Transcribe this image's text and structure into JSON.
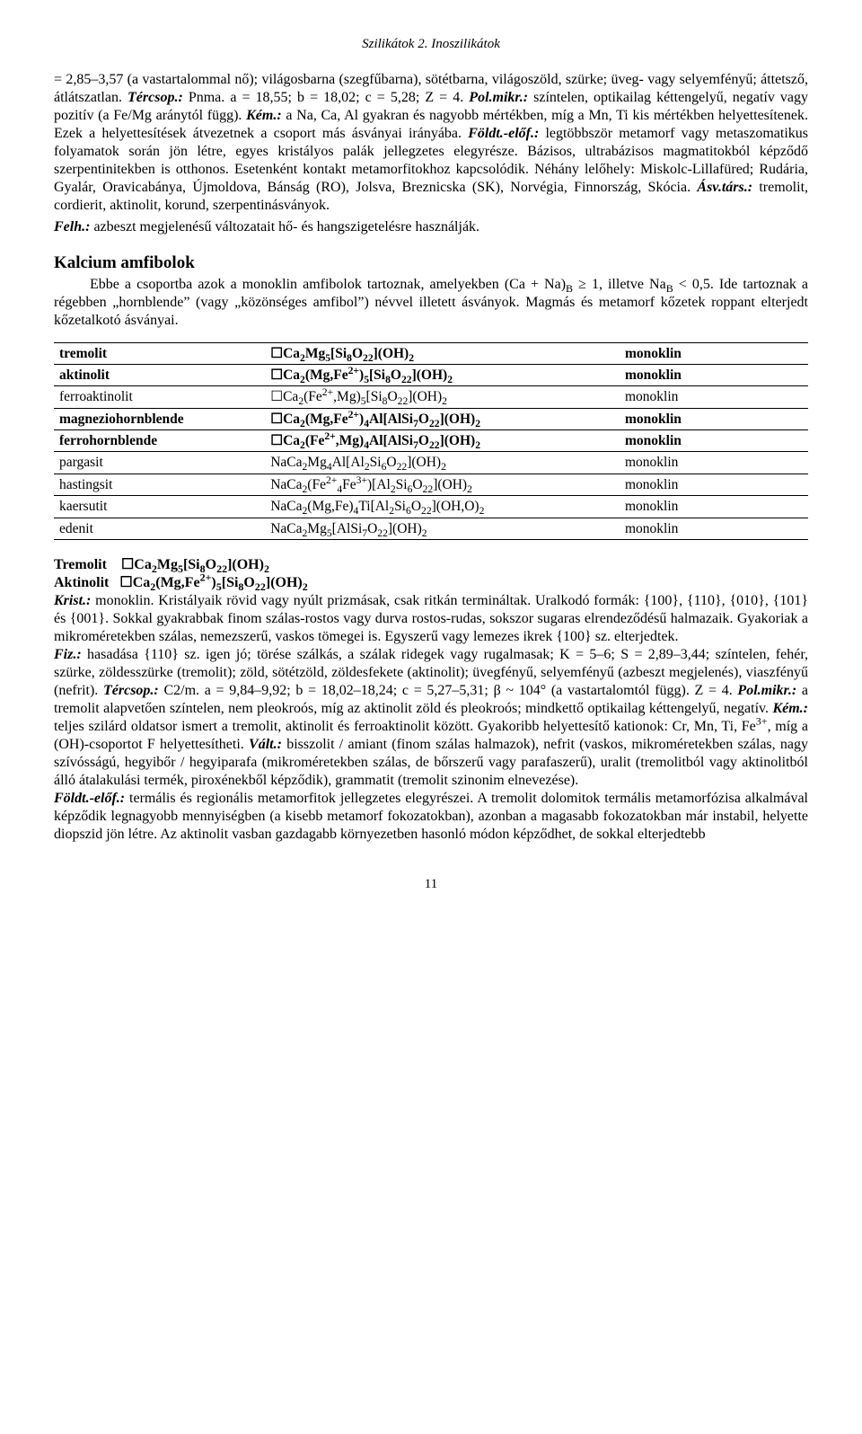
{
  "header": "Szilikátok 2. Inoszilikátok",
  "para1_pre": "= 2,85–3,57 (a vastartalommal nő); világosbarna (szegfűbarna), sötétbarna, világoszöld, szürke; üveg- vagy selyemfényű; áttetsző, átlátszatlan. ",
  "para1_tercsop_label": "Tércsop.:",
  "para1_tercsop_val": " Pnma. a = 18,55; b = 18,02; c = 5,28; Z = 4. ",
  "para1_polmikr_label": "Pol.mikr.:",
  "para1_polmikr_val": " színtelen, optikailag kéttengelyű, negatív vagy pozitív (a Fe/Mg aránytól függ). ",
  "para1_kem_label": "Kém.:",
  "para1_kem_val": " a Na, Ca, Al gyakran és nagyobb mértékben, míg a Mn, Ti kis mértékben helyettesítenek. Ezek a helyettesítések átvezetnek a csoport más ásványai irányába. ",
  "para1_foldt_label": "Földt.-előf.:",
  "para1_foldt_val": " legtöbbször metamorf vagy metaszomatikus folyamatok során jön létre, egyes kristályos palák jellegzetes elegyrésze. Bázisos, ultrabázisos magmatitokból képződő szerpentinitekben is otthonos. Esetenként kontakt metamorfitokhoz kapcsolódik. Néhány lelőhely: Miskolc-Lillafüred; Rudária, Gyalár, Oravicabánya, Újmoldova, Bánság (RO), Jolsva, Breznicska (SK), Norvégia, Finnország, Skócia. ",
  "para1_asvtars_label": "Ásv.társ.:",
  "para1_asvtars_val": " tremolit, cordierit, aktinolit, korund, szerpentinásványok.",
  "para1_felh_label": "Felh.:",
  "para1_felh_val": " azbeszt megjelenésű változatait hő- és hangszigetelésre használják.",
  "section_title": "Kalcium amfibolok",
  "section_body_a": "Ebbe a csoportba azok a monoklin amfibolok tartoznak, amelyekben (Ca + Na)",
  "section_body_b": " ≥ 1, illetve  Na",
  "section_body_c": " < 0,5. Ide tartoznak a régebben „hornblende” (vagy „közönséges amfibol”) névvel illetett ásványok. Magmás és metamorf kőzetek roppant elterjedt kőzetalkotó ásványai.",
  "table": {
    "rows": [
      {
        "name": "tremolit",
        "bold": true,
        "formula": "☐Ca<sub>2</sub>Mg<sub>5</sub>[Si<sub>8</sub>O<sub>22</sub>](OH)<sub>2</sub>",
        "system": "monoklin",
        "fbold": true
      },
      {
        "name": "aktinolit",
        "bold": true,
        "formula": "☐Ca<sub>2</sub>(Mg,Fe<sup>2+</sup>)<sub>5</sub>[Si<sub>8</sub>O<sub>22</sub>](OH)<sub>2</sub>",
        "system": "monoklin",
        "fbold": true
      },
      {
        "name": "ferroaktinolit",
        "bold": false,
        "formula": "☐Ca<sub>2</sub>(Fe<sup>2+</sup>,Mg)<sub>5</sub>[Si<sub>8</sub>O<sub>22</sub>](OH)<sub>2</sub>",
        "system": "monoklin",
        "fbold": false
      },
      {
        "name": "magneziohornblende",
        "bold": true,
        "formula": "☐Ca<sub>2</sub>(Mg,Fe<sup>2+</sup>)<sub>4</sub>Al[AlSi<sub>7</sub>O<sub>22</sub>](OH)<sub>2</sub>",
        "system": "monoklin",
        "fbold": true
      },
      {
        "name": "ferrohornblende",
        "bold": true,
        "formula": "☐Ca<sub>2</sub>(Fe<sup>2+</sup>,Mg)<sub>4</sub>Al[AlSi<sub>7</sub>O<sub>22</sub>](OH)<sub>2</sub>",
        "system": "monoklin",
        "fbold": true
      },
      {
        "name": "pargasit",
        "bold": false,
        "formula": "NaCa<sub>2</sub>Mg<sub>4</sub>Al[Al<sub>2</sub>Si<sub>6</sub>O<sub>22</sub>](OH)<sub>2</sub>",
        "system": "monoklin",
        "fbold": false
      },
      {
        "name": "hastingsit",
        "bold": false,
        "formula": "NaCa<sub>2</sub>(Fe<sup>2+</sup><sub>4</sub>Fe<sup>3+</sup>)[Al<sub>2</sub>Si<sub>6</sub>O<sub>22</sub>](OH)<sub>2</sub>",
        "system": "monoklin",
        "fbold": false
      },
      {
        "name": "kaersutit",
        "bold": false,
        "formula": "NaCa<sub>2</sub>(Mg,Fe)<sub>4</sub>Ti[Al<sub>2</sub>Si<sub>6</sub>O<sub>22</sub>](OH,O)<sub>2</sub>",
        "system": "monoklin",
        "fbold": false
      },
      {
        "name": "edenit",
        "bold": false,
        "formula": "NaCa<sub>2</sub>Mg<sub>5</sub>[AlSi<sub>7</sub>O<sub>22</sub>](OH)<sub>2</sub>",
        "system": "monoklin",
        "fbold": false
      }
    ]
  },
  "tremolit_title": "Tremolit    ☐Ca",
  "tremolit_formula_tail": "Mg<sub>5</sub>[Si<sub>8</sub>O<sub>22</sub>](OH)<sub>2</sub>",
  "aktinolit_title": "Aktinolit   ☐Ca",
  "aktinolit_formula_tail": "(Mg,Fe<sup>2+</sup>)<sub>5</sub>[Si<sub>8</sub>O<sub>22</sub>](OH)<sub>2</sub>",
  "krist_label": "Krist.:",
  "krist_val": " monoklin. Kristályaik rövid vagy nyúlt prizmásak, csak ritkán termináltak. Uralkodó formák: {100}, {110}, {010}, {101} és {001}. Sokkal gyakrabbak finom szálas-rostos vagy durva rostos-rudas, sokszor sugaras elrendeződésű halmazaik. Gyakoriak a mikroméretekben szálas, nemezszerű, vaskos tömegei is. Egyszerű vagy lemezes ikrek {100} sz. elterjedtek.",
  "fiz_label": "Fiz.:",
  "fiz_val": " hasadása {110} sz. igen jó; törése szálkás, a szálak ridegek vagy rugalmasak; K = 5–6; S = 2,89–3,44; színtelen, fehér, szürke, zöldesszürke (tremolit); zöld, sötétzöld, zöldesfekete (aktinolit); üvegfényű, selyemfényű (azbeszt megjelenés), viaszfényű (nefrit). ",
  "tercsop2_label": "Tércsop.:",
  "tercsop2_val": " C2/m. a = 9,84–9,92; b = 18,02–18,24; c = 5,27–5,31; β ~ 104° (a vastartalomtól függ). Z = 4. ",
  "polmikr2_label": "Pol.mikr.:",
  "polmikr2_val": " a tremolit alapvetően színtelen, nem pleokroós, míg az aktinolit zöld és pleokroós; mindkettő optikailag kéttengelyű, negatív. ",
  "kem2_label": "Kém.:",
  "kem2_val": " teljes szilárd oldatsor ismert a tremolit, aktinolit és ferroaktinolit között. Gyakoribb helyettesítő kationok: Cr, Mn, Ti, Fe",
  "kem2_tail": ", míg a (OH)-csoportot F helyettesítheti. ",
  "valt_label": "Vált.:",
  "valt_val": " bisszolit / amiant (finom szálas halmazok), nefrit (vaskos, mikroméretekben szálas, nagy szívósságú, hegyibőr / hegyiparafa (mikroméretekben szálas, de bőrszerű vagy parafaszerű), uralit (tremolitból vagy aktinolitból álló átalakulási termék, piroxénekből képződik), grammatit (tremolit szinonim elnevezése).",
  "foldt2_label": "Földt.-előf.:",
  "foldt2_val": " termális és regionális metamorfitok jellegzetes elegyrészei. A tremolit dolomitok termális metamorfózisa alkalmával képződik legnagyobb mennyiségben (a kisebb metamorf fokozatokban), azonban a magasabb fokozatokban már instabil, helyette diopszid jön létre. Az aktinolit vasban gazdagabb környezetben hasonló módon képződhet, de sokkal elterjedtebb",
  "pagenum": "11"
}
